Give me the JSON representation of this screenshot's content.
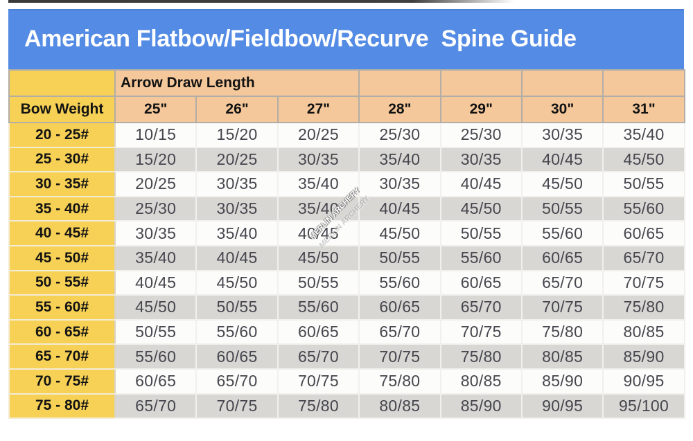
{
  "title": "American Flatbow/Fieldbow/Recurve  Spine Guide",
  "watermark": {
    "text": "MERLIN ARCHERY"
  },
  "colors": {
    "title_bar": "#548BE4",
    "title_text": "#FFFFFF",
    "draw_length_header_fill": "#F5C89B",
    "bow_weight_fill": "#F7D155",
    "row_white": "#FCFCFB",
    "row_gray": "#D8D7D4",
    "data_text": "#46464E"
  },
  "chart_data": {
    "type": "table",
    "title": "American Flatbow/Fieldbow/Recurve Spine Guide",
    "corner_label": "Bow Weight",
    "group_header": "Arrow Draw Length",
    "columns": [
      "25\"",
      "26\"",
      "27\"",
      "28\"",
      "29\"",
      "30\"",
      "31\""
    ],
    "rows": [
      {
        "bow_weight": "20 - 25#",
        "spines": [
          "10/15",
          "15/20",
          "20/25",
          "25/30",
          "25/30",
          "30/35",
          "35/40"
        ]
      },
      {
        "bow_weight": "25 - 30#",
        "spines": [
          "15/20",
          "20/25",
          "30/35",
          "35/40",
          "30/35",
          "40/45",
          "45/50"
        ]
      },
      {
        "bow_weight": "30 - 35#",
        "spines": [
          "20/25",
          "30/35",
          "35/40",
          "30/35",
          "40/45",
          "45/50",
          "50/55"
        ]
      },
      {
        "bow_weight": "35 - 40#",
        "spines": [
          "25/30",
          "30/35",
          "35/40",
          "40/45",
          "45/50",
          "50/55",
          "55/60"
        ]
      },
      {
        "bow_weight": "40 - 45#",
        "spines": [
          "30/35",
          "35/40",
          "40/45",
          "45/50",
          "50/55",
          "55/60",
          "60/65"
        ]
      },
      {
        "bow_weight": "45 - 50#",
        "spines": [
          "35/40",
          "40/45",
          "45/50",
          "50/55",
          "55/60",
          "60/65",
          "65/70"
        ]
      },
      {
        "bow_weight": "50 - 55#",
        "spines": [
          "40/45",
          "45/50",
          "50/55",
          "55/60",
          "60/65",
          "65/70",
          "70/75"
        ]
      },
      {
        "bow_weight": "55 - 60#",
        "spines": [
          "45/50",
          "50/55",
          "55/60",
          "60/65",
          "65/70",
          "70/75",
          "75/80"
        ]
      },
      {
        "bow_weight": "60 - 65#",
        "spines": [
          "50/55",
          "55/60",
          "60/65",
          "65/70",
          "70/75",
          "75/80",
          "80/85"
        ]
      },
      {
        "bow_weight": "65 - 70#",
        "spines": [
          "55/60",
          "60/65",
          "65/70",
          "70/75",
          "75/80",
          "80/85",
          "85/90"
        ]
      },
      {
        "bow_weight": "70 - 75#",
        "spines": [
          "60/65",
          "65/70",
          "70/75",
          "75/80",
          "80/85",
          "85/90",
          "90/95"
        ]
      },
      {
        "bow_weight": "75 - 80#",
        "spines": [
          "65/70",
          "70/75",
          "75/80",
          "80/85",
          "85/90",
          "90/95",
          "95/100"
        ]
      }
    ]
  }
}
